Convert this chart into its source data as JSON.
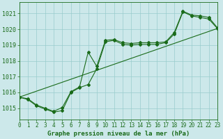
{
  "background_color": "#cce8ea",
  "grid_color": "#99cccc",
  "line_color": "#1a6b1a",
  "marker_color": "#1a6b1a",
  "title": "Graphe pression niveau de la mer (hPa)",
  "title_fontsize": 6.5,
  "tick_fontsize": 5.5,
  "xlim": [
    0,
    23
  ],
  "ylim": [
    1014.3,
    1021.7
  ],
  "yticks": [
    1015,
    1016,
    1017,
    1018,
    1019,
    1020,
    1021
  ],
  "xticks": [
    0,
    1,
    2,
    3,
    4,
    5,
    6,
    7,
    8,
    9,
    10,
    11,
    12,
    13,
    14,
    15,
    16,
    17,
    18,
    19,
    20,
    21,
    22,
    23
  ],
  "series_upper": [
    1015.7,
    1015.6,
    1015.2,
    1015.0,
    1014.8,
    1015.05,
    1016.05,
    1016.35,
    1018.55,
    1017.65,
    1019.3,
    1019.35,
    1019.15,
    1019.1,
    1019.15,
    1019.15,
    1019.15,
    1019.2,
    1019.8,
    1021.15,
    1020.9,
    1020.85,
    1020.75,
    1020.1
  ],
  "series_lower": [
    1015.7,
    1015.55,
    1015.15,
    1014.95,
    1014.75,
    1014.85,
    1016.0,
    1016.3,
    1016.5,
    1017.5,
    1019.2,
    1019.3,
    1019.05,
    1019.0,
    1019.05,
    1019.05,
    1019.05,
    1019.15,
    1019.7,
    1021.1,
    1020.85,
    1020.75,
    1020.65,
    1020.05
  ],
  "series_line_x": [
    0,
    23
  ],
  "series_line_y": [
    1015.7,
    1020.05
  ]
}
